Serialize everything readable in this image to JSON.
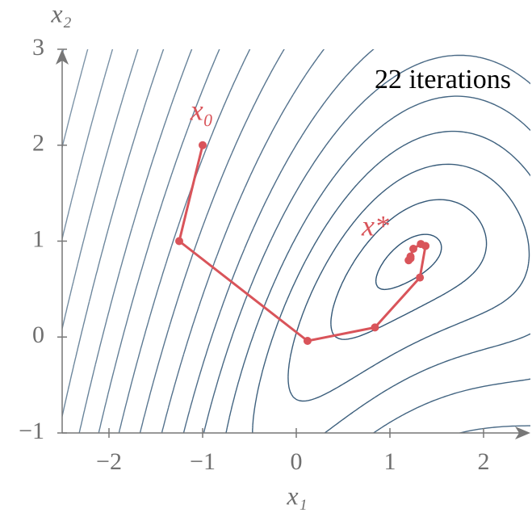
{
  "chart_data": {
    "type": "contour",
    "title": "22 iterations",
    "xlabel": "x₁",
    "ylabel": "x₂",
    "xlim": [
      -2.5,
      2.5
    ],
    "ylim": [
      -1,
      3
    ],
    "xticks": [
      {
        "value": -2,
        "label": "−2"
      },
      {
        "value": -1,
        "label": "−1"
      },
      0,
      1,
      2
    ],
    "yticks": [
      {
        "value": -1,
        "label": "−1"
      },
      0,
      1,
      2,
      3
    ],
    "contour_levels": [
      0.05,
      0.3,
      0.8,
      1.5,
      2.5,
      4,
      6,
      9,
      13,
      18,
      24,
      31,
      40,
      50,
      62,
      76,
      92,
      110
    ],
    "contour_color": "#2f5474",
    "path": {
      "color": "#d9545a",
      "x": [
        -1.0,
        -1.25,
        0.12,
        0.84,
        1.32,
        1.38,
        1.33,
        1.25,
        1.22,
        1.2,
        1.22
      ],
      "y": [
        2.0,
        1.0,
        -0.04,
        0.1,
        0.62,
        0.95,
        0.97,
        0.92,
        0.84,
        0.8,
        0.82
      ]
    },
    "annotations": [
      "x₀",
      "x*"
    ]
  }
}
